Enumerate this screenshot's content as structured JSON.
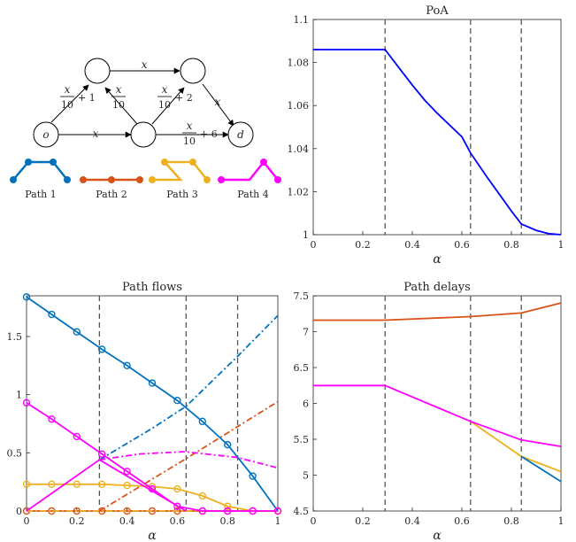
{
  "colors": {
    "path1": "#0072BD",
    "path2": "#D95319",
    "path3": "#EDB120",
    "path4": "#FF00FF",
    "poa": "#0000FF",
    "marker_lines": "#555555"
  },
  "network": {
    "nodes": {
      "origin": "o",
      "destination": "d"
    },
    "edges": [
      {
        "id": "o-a",
        "num": "x",
        "den": "10",
        "suffix": "+ 1"
      },
      {
        "id": "b-a",
        "num": "x",
        "den": "10",
        "suffix": ""
      },
      {
        "id": "b-c",
        "num": "x",
        "den": "10",
        "suffix": "+ 2"
      },
      {
        "id": "a-c",
        "label": "x"
      },
      {
        "id": "o-b",
        "label": "x"
      },
      {
        "id": "c-d",
        "label": "x"
      },
      {
        "id": "b-d",
        "num": "x",
        "den": "10",
        "suffix": "+ 6"
      }
    ],
    "legend": [
      "Path 1",
      "Path 2",
      "Path 3",
      "Path 4"
    ]
  },
  "chart_data": [
    {
      "type": "line",
      "title": "PoA",
      "xlabel": "α",
      "ylabel": "",
      "xlim": [
        0,
        1
      ],
      "ylim": [
        1,
        1.1
      ],
      "xticks": [
        "0",
        "0.2",
        "0.4",
        "0.6",
        "0.8",
        "1"
      ],
      "yticks": [
        "1",
        "1.02",
        "1.04",
        "1.06",
        "1.08",
        "1.1"
      ],
      "vlines": [
        0.29,
        0.635,
        0.84
      ],
      "series": [
        {
          "key": "poa",
          "color": "poa",
          "style": "solid",
          "x": [
            0,
            0.29,
            0.35,
            0.4,
            0.45,
            0.5,
            0.55,
            0.6,
            0.635,
            0.7,
            0.75,
            0.8,
            0.84,
            0.9,
            0.95,
            1.0
          ],
          "y": [
            1.086,
            1.086,
            1.077,
            1.0695,
            1.0625,
            1.0565,
            1.051,
            1.0455,
            1.038,
            1.027,
            1.019,
            1.011,
            1.005,
            1.002,
            1.0005,
            1.0
          ]
        }
      ]
    },
    {
      "type": "line",
      "title": "Path flows",
      "xlabel": "α",
      "ylabel": "",
      "xlim": [
        0,
        1
      ],
      "ylim": [
        0,
        1.85
      ],
      "xticks": [
        "0",
        "0.2",
        "0.4",
        "0.6",
        "0.8",
        "1"
      ],
      "yticks": [
        "0",
        "0.5",
        "1",
        "1.5"
      ],
      "ytick_values": [
        0,
        0.5,
        1,
        1.5
      ],
      "vlines": [
        0.29,
        0.635,
        0.84
      ],
      "series": [
        {
          "key": "path1_solid",
          "color": "path1",
          "style": "solid",
          "markers": true,
          "x": [
            0,
            0.1,
            0.2,
            0.3,
            0.4,
            0.5,
            0.6,
            0.7,
            0.8,
            0.9,
            1.0
          ],
          "y": [
            1.84,
            1.69,
            1.54,
            1.39,
            1.25,
            1.1,
            0.95,
            0.77,
            0.57,
            0.3,
            0.0
          ]
        },
        {
          "key": "path1_dash",
          "color": "path1",
          "style": "dashdot",
          "x": [
            0.29,
            0.5,
            0.635,
            0.84,
            1.0
          ],
          "y": [
            0.44,
            0.71,
            0.9,
            1.33,
            1.68
          ]
        },
        {
          "key": "path2_dash",
          "color": "path2",
          "style": "dashdot",
          "x": [
            0.29,
            0.635,
            1.0
          ],
          "y": [
            0.0,
            0.45,
            0.94
          ]
        },
        {
          "key": "path2_solid",
          "color": "path2",
          "style": "solid",
          "markers": true,
          "x": [
            0,
            0.1,
            0.2,
            0.3,
            0.4,
            0.5,
            0.6,
            0.7,
            0.8,
            0.9,
            1.0
          ],
          "y": [
            0,
            0,
            0,
            0,
            0,
            0,
            0,
            0,
            0,
            0,
            0
          ]
        },
        {
          "key": "path3_solid",
          "color": "path3",
          "style": "solid",
          "markers": true,
          "x": [
            0,
            0.1,
            0.2,
            0.3,
            0.4,
            0.5,
            0.6,
            0.7,
            0.8,
            0.9,
            1.0
          ],
          "y": [
            0.23,
            0.23,
            0.23,
            0.23,
            0.22,
            0.21,
            0.19,
            0.13,
            0.04,
            0.0,
            0.0
          ]
        },
        {
          "key": "path3_dash",
          "color": "path3",
          "style": "dashdot",
          "x": [
            0,
            1.0
          ],
          "y": [
            0.0,
            0.0
          ]
        },
        {
          "key": "path4_solid",
          "color": "path4",
          "style": "solid",
          "markers": true,
          "x": [
            0,
            0.1,
            0.2,
            0.3,
            0.4,
            0.5,
            0.6,
            0.7,
            0.8,
            0.9,
            1.0
          ],
          "y": [
            0.93,
            0.79,
            0.64,
            0.49,
            0.34,
            0.19,
            0.04,
            0.0,
            0.0,
            0.0,
            0.0
          ]
        },
        {
          "key": "path4_solid_rise",
          "color": "path4",
          "style": "solid",
          "x": [
            0.0,
            0.29,
            0.635
          ],
          "y": [
            0.0,
            0.44,
            0.0
          ]
        },
        {
          "key": "path4_dash",
          "color": "path4",
          "style": "dashdot",
          "x": [
            0.29,
            0.45,
            0.63,
            0.84,
            1.0
          ],
          "y": [
            0.44,
            0.49,
            0.51,
            0.46,
            0.37
          ]
        }
      ]
    },
    {
      "type": "line",
      "title": "Path delays",
      "xlabel": "α",
      "ylabel": "",
      "xlim": [
        0,
        1
      ],
      "ylim": [
        4.5,
        7.5
      ],
      "xticks": [
        "0",
        "0.2",
        "0.4",
        "0.6",
        "0.8",
        "1"
      ],
      "yticks": [
        "4.5",
        "5",
        "5.5",
        "6",
        "6.5",
        "7",
        "7.5"
      ],
      "vlines": [
        0.29,
        0.635,
        0.84
      ],
      "series": [
        {
          "key": "path2",
          "color": "path2",
          "style": "solid",
          "x": [
            0,
            0.29,
            0.635,
            0.84,
            1.0
          ],
          "y": [
            7.16,
            7.16,
            7.21,
            7.26,
            7.4
          ]
        },
        {
          "key": "path3",
          "color": "path3",
          "style": "solid",
          "x": [
            0.635,
            0.84,
            1.0
          ],
          "y": [
            5.75,
            5.26,
            5.05
          ]
        },
        {
          "key": "path1",
          "color": "path1",
          "style": "solid",
          "x": [
            0.84,
            1.0
          ],
          "y": [
            5.26,
            4.91
          ]
        },
        {
          "key": "path4",
          "color": "path4",
          "style": "solid",
          "x": [
            0,
            0.29,
            0.635,
            0.84,
            1.0
          ],
          "y": [
            6.25,
            6.25,
            5.75,
            5.49,
            5.4
          ]
        }
      ]
    }
  ]
}
